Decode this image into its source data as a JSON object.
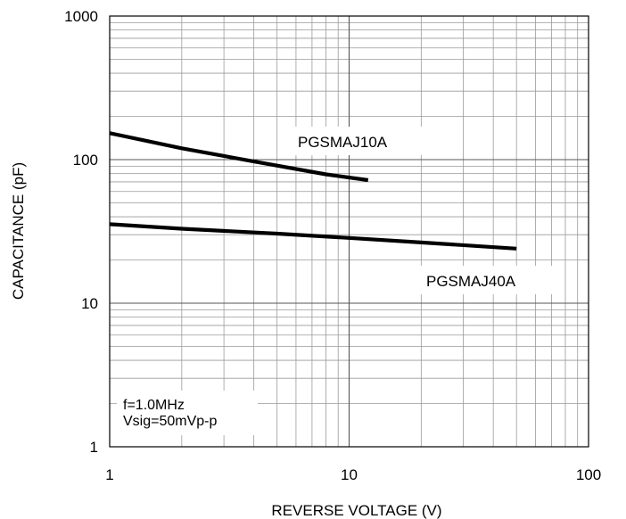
{
  "chart_data": {
    "type": "line",
    "title": "",
    "xlabel": "REVERSE VOLTAGE (V)",
    "ylabel": "CAPACITANCE (pF)",
    "x_scale": "log",
    "y_scale": "log",
    "xlim": [
      1,
      100
    ],
    "ylim": [
      1,
      1000
    ],
    "x_ticks": [
      "1",
      "10",
      "100"
    ],
    "y_ticks": [
      "1",
      "10",
      "100",
      "1000"
    ],
    "grid": true,
    "series": [
      {
        "name": "PGSMAJ10A",
        "color": "#000000",
        "x": [
          1,
          2,
          4,
          8,
          12
        ],
        "y": [
          153,
          120,
          97,
          79,
          72
        ]
      },
      {
        "name": "PGSMAJ40A",
        "color": "#000000",
        "x": [
          1,
          2,
          5,
          10,
          20,
          50
        ],
        "y": [
          35.5,
          33,
          30.5,
          28.5,
          26.5,
          24
        ]
      }
    ],
    "annotations": [
      "f=1.0MHz",
      "Vsig=50mVp-p"
    ]
  }
}
